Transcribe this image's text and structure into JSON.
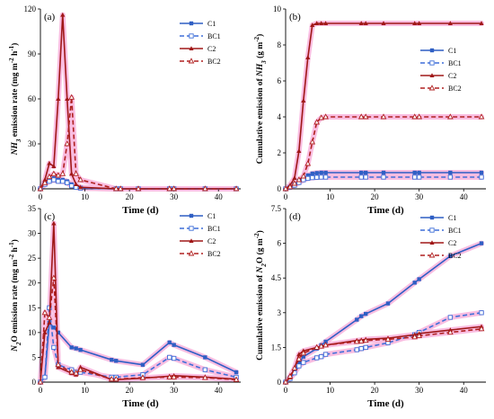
{
  "figure": {
    "xlabel": "Time (d)",
    "colors": {
      "C1": "#2f5fc4",
      "BC1": "#3f6fd8",
      "C2": "#a01818",
      "BC2": "#b02020",
      "highlight": "#f7a8d8"
    }
  },
  "legend": [
    "C1",
    "BC1",
    "C2",
    "BC2"
  ],
  "chart_data": [
    {
      "panel": "(a)",
      "type": "line",
      "ylabel": "NH3 emission rate (mg m-2 h-1)",
      "ylabel_parts": [
        "NH",
        "3",
        " emission rate (mg m",
        "-2",
        " h",
        "-1",
        ")"
      ],
      "xlim": [
        0,
        45
      ],
      "ylim": [
        0,
        120
      ],
      "xticks": [
        0,
        10,
        20,
        30,
        40
      ],
      "yticks": [
        0,
        30,
        60,
        90,
        120
      ],
      "series": [
        {
          "name": "C1",
          "x": [
            0,
            1,
            2,
            3,
            4,
            5,
            6,
            7,
            8,
            9,
            17,
            18,
            22,
            29,
            30,
            37,
            44
          ],
          "y": [
            0,
            4,
            6,
            7,
            6,
            6,
            5,
            3,
            1,
            0.5,
            0,
            0,
            0,
            0,
            0,
            0,
            0
          ]
        },
        {
          "name": "BC1",
          "x": [
            0,
            1,
            2,
            3,
            4,
            5,
            6,
            7,
            8,
            9,
            17,
            18,
            22,
            29,
            30,
            37,
            44
          ],
          "y": [
            0,
            3,
            5,
            6,
            5,
            5,
            4,
            2,
            1,
            0.5,
            0,
            0,
            0,
            0,
            0,
            0,
            0
          ]
        },
        {
          "name": "C2",
          "x": [
            0,
            1,
            2,
            3,
            4,
            5,
            6,
            7,
            8,
            9,
            17,
            18,
            22,
            29,
            30,
            37,
            44
          ],
          "y": [
            0,
            6,
            17,
            15,
            60,
            116,
            60,
            10,
            3,
            1,
            0,
            0,
            0,
            0,
            0,
            0,
            0
          ]
        },
        {
          "name": "BC2",
          "x": [
            0,
            1,
            2,
            3,
            4,
            5,
            6,
            7,
            8,
            9,
            17,
            18,
            22,
            29,
            30,
            37,
            44
          ],
          "y": [
            0,
            4,
            8,
            10,
            9,
            10,
            30,
            61,
            10,
            6,
            0,
            0,
            0,
            0,
            0,
            0,
            0
          ]
        }
      ]
    },
    {
      "panel": "(b)",
      "type": "line",
      "ylabel": "Cumulative emission of NH3 (g m-2)",
      "ylabel_parts": [
        "Cumulative emission of ",
        "NH",
        "3",
        " (g m",
        "-2",
        ")"
      ],
      "xlim": [
        0,
        45
      ],
      "ylim": [
        0,
        10
      ],
      "xticks": [
        0,
        10,
        20,
        30,
        40
      ],
      "yticks": [
        0,
        2,
        4,
        6,
        8,
        10
      ],
      "series": [
        {
          "name": "C1",
          "x": [
            0,
            1,
            2,
            3,
            4,
            5,
            6,
            7,
            8,
            9,
            17,
            18,
            22,
            29,
            30,
            37,
            44
          ],
          "y": [
            0,
            0.1,
            0.25,
            0.45,
            0.6,
            0.75,
            0.85,
            0.88,
            0.9,
            0.9,
            0.9,
            0.9,
            0.9,
            0.9,
            0.9,
            0.9,
            0.9
          ]
        },
        {
          "name": "BC1",
          "x": [
            0,
            1,
            2,
            3,
            4,
            5,
            6,
            7,
            8,
            9,
            17,
            18,
            22,
            29,
            30,
            37,
            44
          ],
          "y": [
            0,
            0.08,
            0.2,
            0.35,
            0.5,
            0.58,
            0.62,
            0.64,
            0.65,
            0.65,
            0.65,
            0.65,
            0.65,
            0.65,
            0.65,
            0.65,
            0.65
          ]
        },
        {
          "name": "C2",
          "x": [
            0,
            1,
            2,
            3,
            4,
            5,
            6,
            7,
            8,
            9,
            17,
            18,
            22,
            29,
            30,
            37,
            44
          ],
          "y": [
            0,
            0.2,
            0.6,
            2.1,
            4.9,
            7.3,
            9.1,
            9.2,
            9.2,
            9.2,
            9.2,
            9.2,
            9.2,
            9.2,
            9.2,
            9.2,
            9.2
          ]
        },
        {
          "name": "BC2",
          "x": [
            0,
            1,
            2,
            3,
            4,
            5,
            6,
            7,
            8,
            9,
            17,
            18,
            22,
            29,
            30,
            37,
            44
          ],
          "y": [
            0,
            0.1,
            0.3,
            0.5,
            0.7,
            1.4,
            2.6,
            3.7,
            3.95,
            4.0,
            4.0,
            4.0,
            4.0,
            4.0,
            4.0,
            4.0,
            4.0
          ]
        }
      ]
    },
    {
      "panel": "(c)",
      "type": "line",
      "ylabel": "N2O emission rate (mg m-2 h-1)",
      "ylabel_parts": [
        "N",
        "2",
        "O emission rate (mg m",
        "-2",
        " h",
        "-1",
        ")"
      ],
      "xlim": [
        0,
        45
      ],
      "ylim": [
        0,
        35
      ],
      "xticks": [
        0,
        10,
        20,
        30,
        40
      ],
      "yticks": [
        0,
        5,
        10,
        15,
        20,
        25,
        30,
        35
      ],
      "series": [
        {
          "name": "C1",
          "x": [
            0,
            1,
            2,
            3,
            4,
            7,
            8,
            9,
            16,
            17,
            23,
            29,
            30,
            37,
            44
          ],
          "y": [
            0,
            1,
            12,
            11,
            10,
            7,
            6.8,
            6.5,
            4.5,
            4.3,
            3.5,
            8,
            7.5,
            5,
            2
          ]
        },
        {
          "name": "BC1",
          "x": [
            0,
            1,
            2,
            3,
            4,
            7,
            8,
            9,
            16,
            17,
            23,
            29,
            30,
            37,
            44
          ],
          "y": [
            0,
            1,
            15,
            7,
            3.5,
            2.5,
            2,
            2,
            1,
            1,
            1.5,
            5,
            4.8,
            2.5,
            1
          ]
        },
        {
          "name": "C2",
          "x": [
            0,
            1,
            2,
            3,
            4,
            7,
            8,
            9,
            16,
            17,
            23,
            29,
            30,
            37,
            44
          ],
          "y": [
            0,
            10,
            12,
            32,
            3,
            1.8,
            1.5,
            3,
            0.5,
            0.5,
            0.8,
            1.2,
            1.3,
            1,
            0.6
          ]
        },
        {
          "name": "BC2",
          "x": [
            0,
            1,
            2,
            3,
            4,
            7,
            8,
            9,
            16,
            17,
            23,
            29,
            30,
            37,
            44
          ],
          "y": [
            0,
            14,
            13,
            21,
            3.5,
            2,
            1.8,
            2.5,
            0.6,
            0.6,
            0.9,
            1,
            1,
            0.9,
            0.5
          ]
        }
      ]
    },
    {
      "panel": "(d)",
      "type": "line",
      "ylabel": "Cumulative emission of N2O (g m-2)",
      "ylabel_parts": [
        "Cumulative emission of ",
        "N",
        "2",
        "O (g m",
        "-2",
        ")"
      ],
      "xlim": [
        0,
        45
      ],
      "ylim": [
        0,
        7.5
      ],
      "xticks": [
        0,
        10,
        20,
        30,
        40
      ],
      "yticks": [
        0,
        1.5,
        3,
        4.5,
        6,
        7.5
      ],
      "series": [
        {
          "name": "C1",
          "x": [
            0,
            1,
            2,
            3,
            4,
            7,
            8,
            9,
            16,
            17,
            18,
            23,
            29,
            30,
            37,
            44
          ],
          "y": [
            0,
            0.2,
            0.5,
            0.85,
            1.1,
            1.45,
            1.6,
            1.75,
            2.7,
            2.85,
            2.95,
            3.4,
            4.3,
            4.45,
            5.45,
            6.0
          ]
        },
        {
          "name": "BC1",
          "x": [
            0,
            1,
            2,
            3,
            4,
            7,
            8,
            9,
            16,
            17,
            18,
            23,
            29,
            30,
            37,
            44
          ],
          "y": [
            0,
            0.15,
            0.4,
            0.7,
            0.85,
            1.05,
            1.1,
            1.2,
            1.4,
            1.45,
            1.5,
            1.7,
            2.05,
            2.15,
            2.8,
            3.0
          ]
        },
        {
          "name": "C2",
          "x": [
            0,
            1,
            2,
            3,
            4,
            7,
            8,
            9,
            16,
            17,
            18,
            23,
            29,
            30,
            37,
            44
          ],
          "y": [
            0,
            0.2,
            0.6,
            1.2,
            1.35,
            1.5,
            1.55,
            1.6,
            1.8,
            1.82,
            1.85,
            1.9,
            2.05,
            2.1,
            2.25,
            2.4
          ]
        },
        {
          "name": "BC2",
          "x": [
            0,
            1,
            2,
            3,
            4,
            7,
            8,
            9,
            16,
            17,
            18,
            23,
            29,
            30,
            37,
            44
          ],
          "y": [
            0,
            0.25,
            0.6,
            1.0,
            1.25,
            1.5,
            1.55,
            1.6,
            1.75,
            1.77,
            1.8,
            1.85,
            1.95,
            2.0,
            2.15,
            2.3
          ]
        }
      ]
    }
  ]
}
